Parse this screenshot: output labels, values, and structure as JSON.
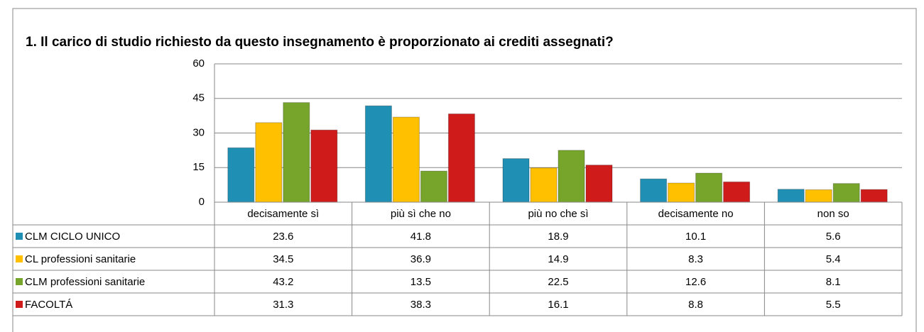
{
  "chart_data": {
    "type": "bar",
    "title": "1. Il carico di studio richiesto da questo insegnamento è proporzionato ai crediti assegnati?",
    "categories": [
      "decisamente sì",
      "più sì che no",
      "più no che sì",
      "decisamente no",
      "non so"
    ],
    "series": [
      {
        "name": "CLM CICLO UNICO",
        "color": "#1f8fb4",
        "values": [
          23.6,
          41.8,
          18.9,
          10.1,
          5.6
        ]
      },
      {
        "name": "CL professioni sanitarie",
        "color": "#ffc000",
        "values": [
          34.5,
          36.9,
          14.9,
          8.3,
          5.4
        ]
      },
      {
        "name": "CLM professioni sanitarie",
        "color": "#77a52b",
        "values": [
          43.2,
          13.5,
          22.5,
          12.6,
          8.1
        ]
      },
      {
        "name": "FACOLTÁ",
        "color": "#d01b1b",
        "values": [
          31.3,
          38.3,
          16.1,
          8.8,
          5.5
        ]
      }
    ],
    "ylim": [
      0,
      60
    ],
    "yticks": [
      0,
      15,
      30,
      45,
      60
    ],
    "grid": true
  }
}
